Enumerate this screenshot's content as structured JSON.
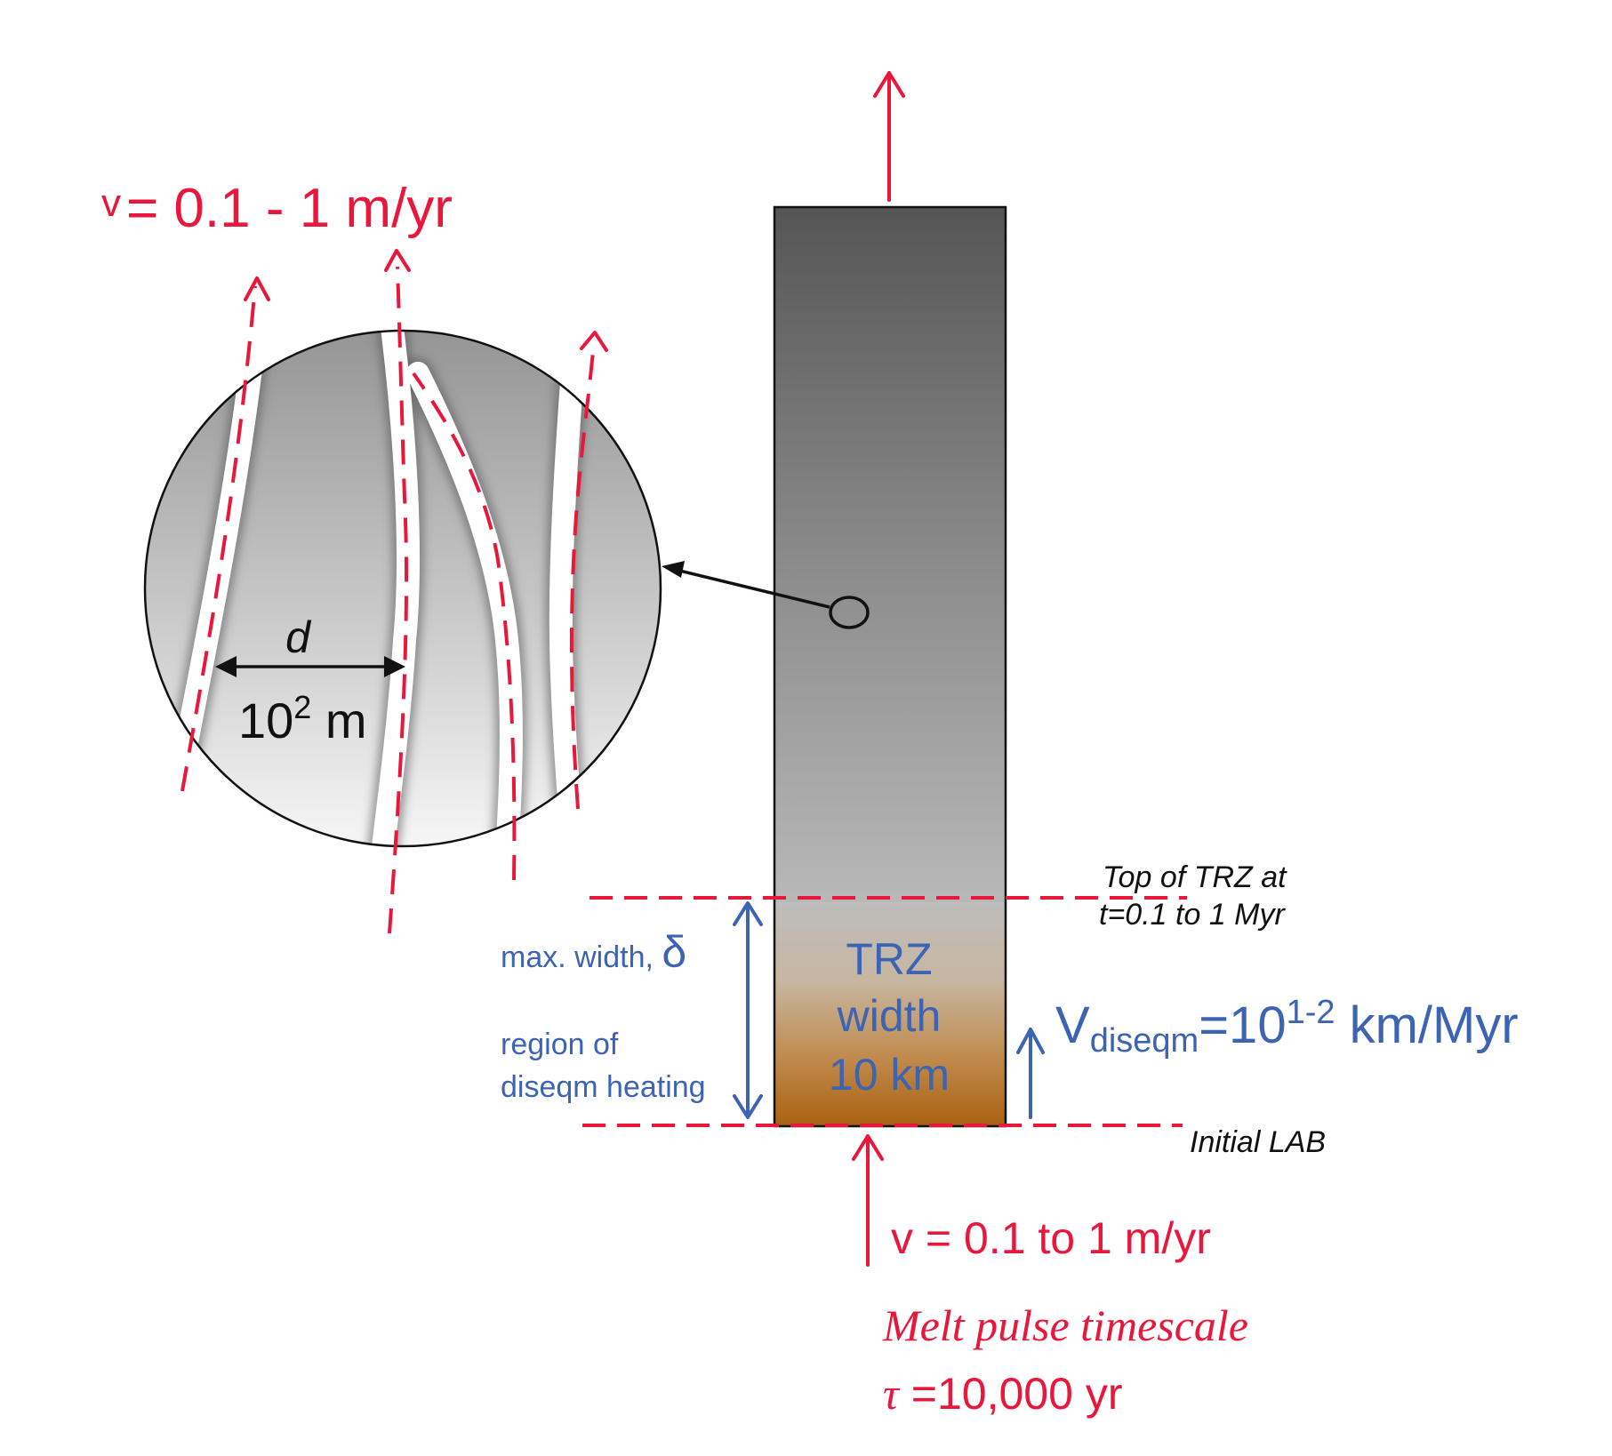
{
  "colors": {
    "red": "#e8173c",
    "blue": "#3d63b3",
    "black": "#111111"
  },
  "labels": {
    "vein_velocity": "= 0.1 - 1 m/yr",
    "vein_velocity_symbol": "v",
    "spacing_symbol": "d",
    "spacing_value_base": "10",
    "spacing_value_exp": "2",
    "spacing_value_unit": " m",
    "top_trz_line1": "Top of TRZ at",
    "top_trz_line2": "t=0.1 to 1 Myr",
    "max_width_text": "max. width, ",
    "delta_symbol": "δ",
    "region_line1": "region of",
    "region_line2": "diseqm heating",
    "trz_line1": "TRZ",
    "trz_line2": "width",
    "trz_line3": "10 km",
    "vdiseqm_v": "V",
    "vdiseqm_sub": "diseqm",
    "vdiseqm_mid": "=10",
    "vdiseqm_exp": "1-2",
    "vdiseqm_unit": " km/Myr",
    "initial_lab": "Initial LAB",
    "melt_velocity": "v = 0.1 to 1 m/yr",
    "melt_pulse": "Melt pulse timescale",
    "tau_symbol": "τ",
    "tau_value": " =10,000 yr"
  }
}
